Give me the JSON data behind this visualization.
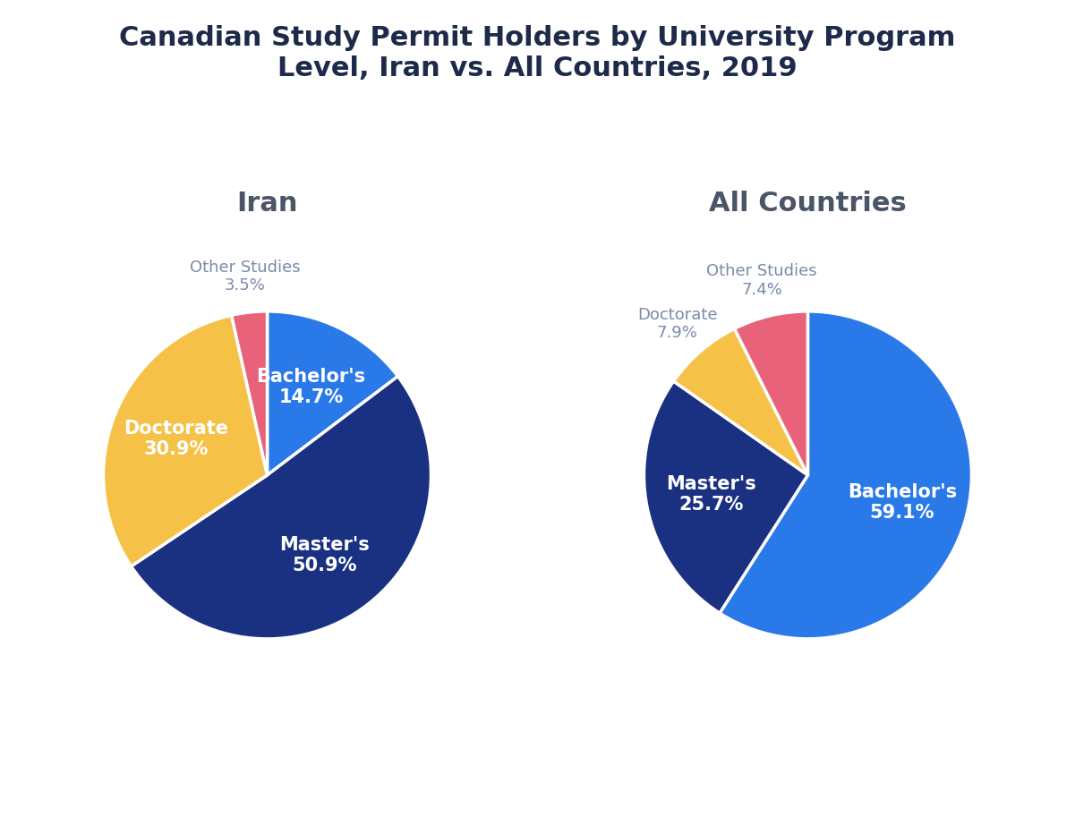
{
  "title": "Canadian Study Permit Holders by University Program\nLevel, Iran vs. All Countries, 2019",
  "title_color": "#1e2a4a",
  "title_fontsize": 22,
  "background_color": "#ffffff",
  "charts": [
    {
      "subtitle": "Iran",
      "subtitle_fontsize": 22,
      "subtitle_color": "#4a5568",
      "slices": [
        {
          "label": "Bachelor's",
          "value": 14.7,
          "color": "#2979e8"
        },
        {
          "label": "Master's",
          "value": 50.9,
          "color": "#1a3080"
        },
        {
          "label": "Doctorate",
          "value": 30.9,
          "color": "#f5c147"
        },
        {
          "label": "Other Studies",
          "value": 3.5,
          "color": "#e8637a"
        }
      ],
      "startangle": 90,
      "label_inside": [
        "Bachelor's",
        "Master's",
        "Doctorate"
      ],
      "label_outside": [
        "Other Studies"
      ]
    },
    {
      "subtitle": "All Countries",
      "subtitle_fontsize": 22,
      "subtitle_color": "#4a5568",
      "slices": [
        {
          "label": "Bachelor's",
          "value": 59.1,
          "color": "#2979e8"
        },
        {
          "label": "Master's",
          "value": 25.7,
          "color": "#1a3080"
        },
        {
          "label": "Doctorate",
          "value": 7.9,
          "color": "#f5c147"
        },
        {
          "label": "Other Studies",
          "value": 7.4,
          "color": "#e8637a"
        }
      ],
      "startangle": 90,
      "label_inside": [
        "Bachelor's",
        "Master's"
      ],
      "label_outside": [
        "Doctorate",
        "Other Studies"
      ]
    }
  ],
  "wedge_linewidth": 2.5,
  "wedge_linecolor": "#ffffff",
  "inside_label_color": "#ffffff",
  "outside_label_color": "#7a8aaa",
  "inside_label_fontsize": 15,
  "outside_label_fontsize": 13,
  "inside_label_fontweight": "bold"
}
